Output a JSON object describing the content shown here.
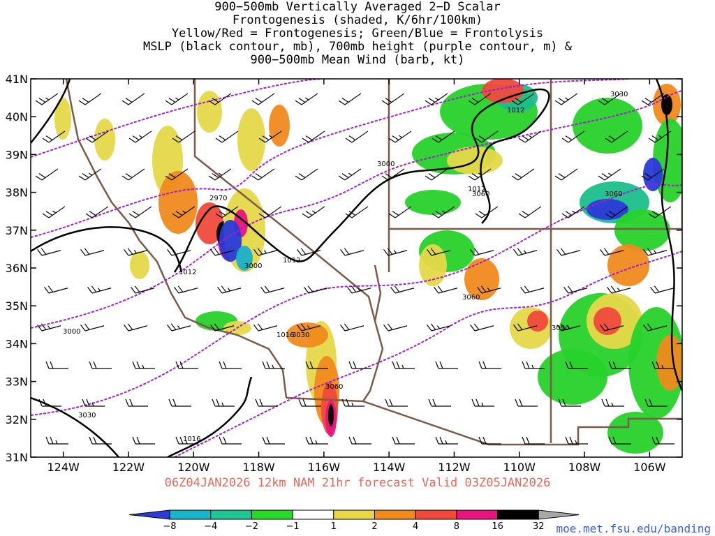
{
  "header": {
    "title_lines": [
      "900−500mb Vertically Averaged 2−D Scalar",
      "Frontogenesis (shaded, K/6hr/100km)",
      "Yellow/Red = Frontogenesis;  Green/Blue = Frontolysis",
      "MSLP (black contour, mb), 700mb height (purple contour, m) &",
      "900−500mb Mean Wind (barb, kt)"
    ]
  },
  "map": {
    "lon_ticks": [
      "124W",
      "122W",
      "120W",
      "118W",
      "116W",
      "114W",
      "112W",
      "110W",
      "108W",
      "106W"
    ],
    "lat_ticks": [
      "41N",
      "40N",
      "39N",
      "38N",
      "37N",
      "36N",
      "35N",
      "34N",
      "33N",
      "32N",
      "31N"
    ],
    "extent": {
      "lon": [
        -125,
        -105
      ],
      "lat": [
        31,
        41
      ]
    },
    "contour_labels": {
      "mslp": [
        "1012",
        "1012",
        "1012",
        "1012",
        "1016",
        "1016"
      ],
      "height": [
        "3000",
        "3000",
        "3000",
        "3030",
        "3030",
        "3060",
        "3060",
        "3060",
        "3060",
        "2970",
        "3090",
        "3030"
      ]
    },
    "colors": {
      "mslp": "#000000",
      "height": "#a020d0",
      "border": "#7a5a48",
      "frontogenesis": [
        "#e6d84a",
        "#f08a1c",
        "#f04a3c",
        "#e8147e",
        "#000000"
      ],
      "frontolysis": [
        "#27d22a",
        "#1bbf8c",
        "#1ab0c8",
        "#2a3ad8"
      ]
    }
  },
  "footer": {
    "valid_text": "06Z04JAN2026 12km NAM 21hr forecast Valid 03Z05JAN2026"
  },
  "colorbar": {
    "labels": [
      "−8",
      "−4",
      "−2",
      "−1",
      "1",
      "2",
      "4",
      "8",
      "16",
      "32"
    ],
    "colors": [
      "#2b3cd6",
      "#1ab3c8",
      "#21c493",
      "#2ad82a",
      "#ffffff",
      "#e6d84a",
      "#f08a1c",
      "#f04a3c",
      "#e8147e",
      "#000000",
      "#a8a8a8"
    ]
  },
  "credit": "moe.met.fsu.edu/banding"
}
